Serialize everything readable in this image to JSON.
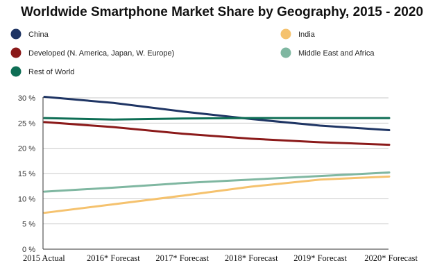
{
  "chart_data": {
    "type": "line",
    "title": "Worldwide Smartphone Market Share by Geography, 2015 - 2020",
    "xlabel": "",
    "ylabel": "",
    "categories": [
      "2015 Actual",
      "2016* Forecast",
      "2017* Forecast",
      "2018* Forecast",
      "2019* Forecast",
      "2020* Forecast"
    ],
    "ylim": [
      0,
      30
    ],
    "yticks": [
      0,
      5,
      10,
      15,
      20,
      25,
      30
    ],
    "ytick_labels": [
      "0 %",
      "5 %",
      "10 %",
      "15 %",
      "20 %",
      "25 %",
      "30 %"
    ],
    "grid": true,
    "legend_position": "top",
    "series": [
      {
        "name": "China",
        "color": "#1f3564",
        "values": [
          30.2,
          29.0,
          27.3,
          25.8,
          24.5,
          23.6
        ]
      },
      {
        "name": "India",
        "color": "#f5c26e",
        "values": [
          7.2,
          8.9,
          10.6,
          12.4,
          13.8,
          14.4
        ]
      },
      {
        "name": "Developed (N. America, Japan, W. Europe)",
        "color": "#8b1a1a",
        "values": [
          25.2,
          24.2,
          22.9,
          21.9,
          21.2,
          20.7
        ]
      },
      {
        "name": "Middle East and Africa",
        "color": "#7fb7a1",
        "values": [
          11.4,
          12.2,
          13.1,
          13.8,
          14.5,
          15.2
        ]
      },
      {
        "name": "Rest of World",
        "color": "#0e6e55",
        "values": [
          26.0,
          25.7,
          25.9,
          26.0,
          26.0,
          26.0
        ]
      }
    ]
  }
}
